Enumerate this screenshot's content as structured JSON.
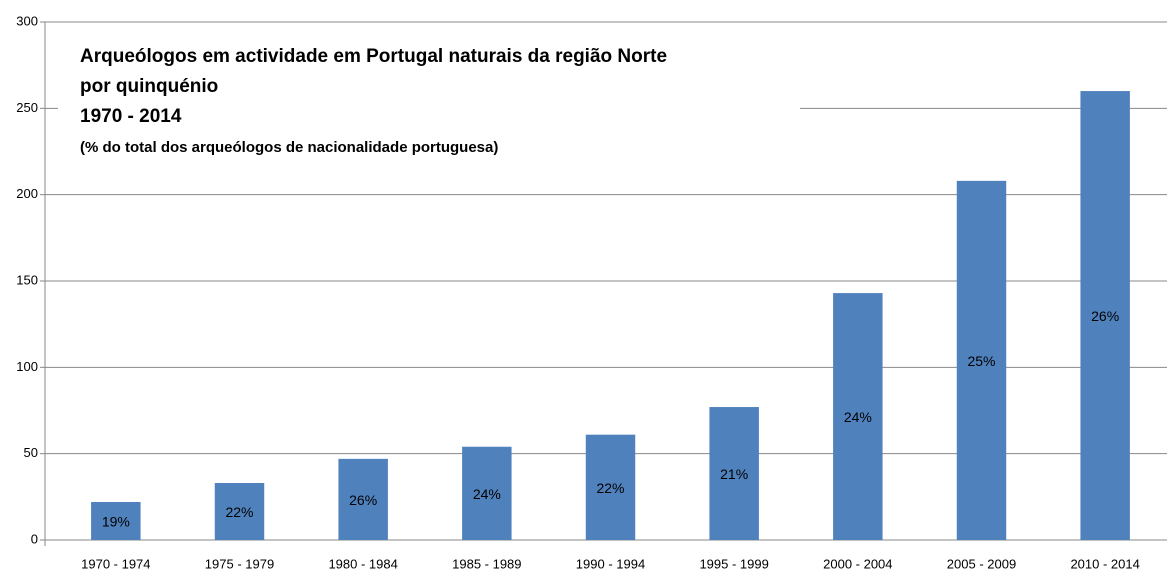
{
  "chart_data": {
    "type": "bar",
    "title_lines": [
      "Arqueólogos em actividade em Portugal naturais da região Norte",
      "por quinquénio",
      "1970 - 2014"
    ],
    "subtitle": "(% do total dos arqueólogos de nacionalidade portuguesa)",
    "categories": [
      "1970 - 1974",
      "1975 - 1979",
      "1980 - 1984",
      "1985 - 1989",
      "1990 - 1994",
      "1995 - 1999",
      "2000 - 2004",
      "2005 - 2009",
      "2010 - 2014"
    ],
    "values": [
      22,
      33,
      47,
      54,
      61,
      77,
      143,
      208,
      260
    ],
    "bar_labels": [
      "19%",
      "22%",
      "26%",
      "24%",
      "22%",
      "21%",
      "24%",
      "25%",
      "26%"
    ],
    "color": "#4f81bd",
    "ylim": [
      0,
      300
    ],
    "yticks": [
      0,
      50,
      100,
      150,
      200,
      250,
      300
    ],
    "grid": true
  }
}
